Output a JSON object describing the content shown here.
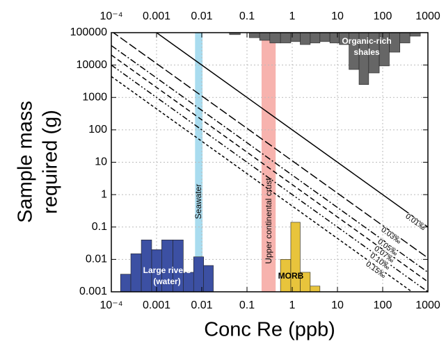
{
  "chart_data": {
    "type": "line",
    "xlabel": "Conc Re (ppb)",
    "ylabel": [
      "Sample mass",
      "required (g)"
    ],
    "xscale": "log",
    "yscale": "log",
    "xlim": [
      0.0001,
      1000
    ],
    "ylim": [
      0.001,
      100000
    ],
    "xticks": [
      {
        "value": 0.0001,
        "label": "10⁻⁴"
      },
      0.001,
      0.01,
      0.1,
      1,
      10,
      100,
      1000
    ],
    "yticks": [
      0.001,
      0.01,
      0.1,
      1,
      10,
      100,
      1000,
      10000,
      100000
    ],
    "grid": true,
    "series": [
      {
        "name": "0.01‰",
        "color": "#000000",
        "dash": "",
        "x": [
          0.0001,
          1000
        ],
        "values": [
          1000000,
          0.1
        ]
      },
      {
        "name": "0.03‰",
        "color": "#000000",
        "dash": "12,4",
        "x": [
          0.0001,
          1000
        ],
        "values": [
          111111,
          0.0111
        ]
      },
      {
        "name": "0.05‰",
        "color": "#000000",
        "dash": "9,3,2,3",
        "x": [
          0.0001,
          1000
        ],
        "values": [
          40000,
          0.004
        ]
      },
      {
        "name": "0.07‰",
        "color": "#000000",
        "dash": "7,4",
        "x": [
          0.0001,
          1000
        ],
        "values": [
          20408,
          0.00204
        ]
      },
      {
        "name": "0.10‰",
        "color": "#000000",
        "dash": "8,3,2,3,2,3",
        "x": [
          0.0001,
          1000
        ],
        "values": [
          10000,
          0.001
        ]
      },
      {
        "name": "0.15‰",
        "color": "#000000",
        "dash": "4,3",
        "x": [
          0.0001,
          1000
        ],
        "values": [
          4444,
          0.000444
        ]
      }
    ],
    "bands": [
      {
        "label": "Seawater",
        "color": "#a9dcef",
        "x": [
          0.0071,
          0.0104
        ]
      },
      {
        "label": "Upper continental crust",
        "color": "#f7b3ae",
        "x": [
          0.21,
          0.43
        ]
      }
    ],
    "histograms": [
      {
        "label": [
          "Large rivers",
          "(water)"
        ],
        "color": "#3c50a3",
        "anchor": "bottom",
        "bins": [
          0.00016,
          0.00027,
          0.00046,
          0.00078,
          0.0013,
          0.0023,
          0.0039,
          0.0066,
          0.011,
          0.018
        ],
        "values": [
          0.0035,
          0.015,
          0.04,
          0.02,
          0.04,
          0.04,
          0.004,
          0.012,
          0.0065
        ]
      },
      {
        "label": [
          "MORB"
        ],
        "color": "#e8c43c",
        "anchor": "bottom",
        "bins": [
          0.55,
          0.93,
          1.5,
          2.5,
          4.1
        ],
        "values": [
          0.01,
          0.14,
          0.004,
          0.0015
        ]
      },
      {
        "label": [
          "Organic-rich",
          "shales"
        ],
        "color": "#666666",
        "anchor": "top",
        "bins": [
          0.041,
          0.071,
          0.112,
          0.19,
          0.32,
          0.55,
          0.93,
          1.5,
          2.5,
          4.1,
          6.8,
          11,
          18,
          30,
          49,
          84,
          140,
          240,
          400,
          680
        ],
        "values": [
          87000,
          null,
          70000,
          58000,
          48000,
          48000,
          53000,
          43000,
          48000,
          53000,
          48000,
          43000,
          7300,
          2500,
          5700,
          9400,
          25000,
          48000,
          78000
        ]
      }
    ]
  }
}
